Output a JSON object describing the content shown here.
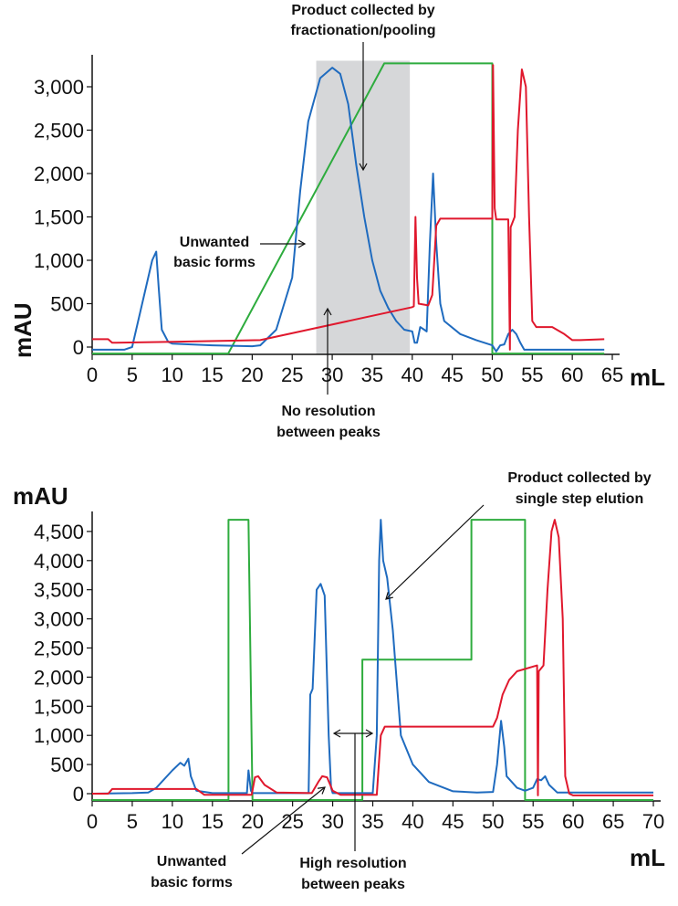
{
  "colors": {
    "blue": "#1f6bbf",
    "red": "#e0182d",
    "green": "#2eac3e",
    "shade": "#d6d7d9"
  },
  "chart_data": [
    {
      "type": "line",
      "ylabel": "mAU",
      "xlabel": "mL",
      "xlim": [
        0,
        65
      ],
      "ylim": [
        -85,
        3300
      ],
      "xticks": [
        0,
        5,
        10,
        15,
        20,
        25,
        30,
        35,
        40,
        45,
        50,
        55,
        60,
        65
      ],
      "yticks": [
        0,
        500,
        1000,
        1500,
        2000,
        2500,
        3000
      ],
      "ytick_labels": [
        "0",
        "500",
        "1,000",
        "1,500",
        "2,000",
        "2,500",
        "3,000"
      ],
      "shaded_region": {
        "x": [
          28,
          39.7
        ]
      },
      "series": [
        {
          "color": "blue",
          "points": [
            [
              0,
              -30
            ],
            [
              4,
              -30
            ],
            [
              5,
              0
            ],
            [
              6,
              400
            ],
            [
              7.5,
              1000
            ],
            [
              8,
              1100
            ],
            [
              8.3,
              700
            ],
            [
              8.7,
              200
            ],
            [
              9.5,
              60
            ],
            [
              10,
              40
            ],
            [
              15,
              20
            ],
            [
              20,
              10
            ],
            [
              21,
              20
            ],
            [
              23,
              200
            ],
            [
              25,
              800
            ],
            [
              26,
              1800
            ],
            [
              27,
              2600
            ],
            [
              28.5,
              3100
            ],
            [
              30,
              3220
            ],
            [
              31,
              3150
            ],
            [
              32,
              2800
            ],
            [
              33,
              2100
            ],
            [
              34,
              1500
            ],
            [
              35,
              1000
            ],
            [
              36,
              650
            ],
            [
              37,
              450
            ],
            [
              38,
              300
            ],
            [
              39,
              200
            ],
            [
              40,
              180
            ],
            [
              40.3,
              50
            ],
            [
              40.6,
              50
            ],
            [
              41,
              230
            ],
            [
              41.5,
              200
            ],
            [
              41.8,
              180
            ],
            [
              42.2,
              1200
            ],
            [
              42.6,
              2000
            ],
            [
              43,
              1200
            ],
            [
              43.5,
              500
            ],
            [
              44,
              300
            ],
            [
              46,
              150
            ],
            [
              48,
              80
            ],
            [
              50,
              20
            ],
            [
              50.5,
              -50
            ],
            [
              51,
              20
            ],
            [
              51.5,
              30
            ],
            [
              52,
              150
            ],
            [
              52.5,
              200
            ],
            [
              53,
              150
            ],
            [
              53.5,
              50
            ],
            [
              54,
              -30
            ],
            [
              64,
              -30
            ]
          ]
        },
        {
          "color": "red",
          "points": [
            [
              0,
              90
            ],
            [
              2,
              90
            ],
            [
              2.5,
              50
            ],
            [
              10,
              60
            ],
            [
              21,
              80
            ],
            [
              22,
              100
            ],
            [
              40,
              460
            ],
            [
              40.2,
              470
            ],
            [
              40.4,
              1500
            ],
            [
              40.6,
              800
            ],
            [
              40.8,
              500
            ],
            [
              42,
              480
            ],
            [
              42.5,
              600
            ],
            [
              43,
              1400
            ],
            [
              43.5,
              1480
            ],
            [
              50,
              1480
            ],
            [
              50.1,
              3250
            ],
            [
              50.3,
              1600
            ],
            [
              50.5,
              1470
            ],
            [
              52,
              1470
            ],
            [
              52.2,
              -30
            ],
            [
              52.3,
              1380
            ],
            [
              52.8,
              1500
            ],
            [
              53.2,
              2500
            ],
            [
              53.7,
              3200
            ],
            [
              54.2,
              3000
            ],
            [
              54.6,
              1500
            ],
            [
              55,
              300
            ],
            [
              55.5,
              230
            ],
            [
              57.5,
              230
            ],
            [
              59,
              150
            ],
            [
              60,
              80
            ],
            [
              61,
              80
            ],
            [
              64,
              90
            ]
          ]
        },
        {
          "color": "green",
          "points": [
            [
              0,
              -75
            ],
            [
              17,
              -75
            ],
            [
              36.5,
              3270
            ],
            [
              50,
              3270
            ],
            [
              50,
              -75
            ],
            [
              64,
              -75
            ]
          ]
        }
      ],
      "annotations": [
        {
          "lines": [
            "Product collected by",
            "fractionation/pooling"
          ]
        },
        {
          "lines": [
            "Unwanted",
            "basic forms"
          ]
        },
        {
          "lines": [
            "No resolution",
            "between peaks"
          ]
        }
      ]
    },
    {
      "type": "line",
      "ylabel": "mAU",
      "xlabel": "mL",
      "xlim": [
        0,
        70
      ],
      "ylim": [
        -125,
        4800
      ],
      "xticks": [
        0,
        5,
        10,
        15,
        20,
        25,
        30,
        35,
        40,
        45,
        50,
        55,
        60,
        65,
        70
      ],
      "yticks": [
        0,
        500,
        1000,
        1500,
        2000,
        2500,
        3000,
        3500,
        4000,
        4500
      ],
      "ytick_labels": [
        "0",
        "500",
        "1,000",
        "1,500",
        "2,000",
        "2,500",
        "3,000",
        "3,500",
        "4,000",
        "4,500"
      ],
      "series": [
        {
          "color": "blue",
          "points": [
            [
              0,
              0
            ],
            [
              5,
              10
            ],
            [
              7,
              20
            ],
            [
              8,
              100
            ],
            [
              10,
              400
            ],
            [
              11,
              530
            ],
            [
              11.5,
              480
            ],
            [
              12,
              600
            ],
            [
              12.3,
              300
            ],
            [
              13,
              50
            ],
            [
              15,
              10
            ],
            [
              19.3,
              10
            ],
            [
              19.5,
              400
            ],
            [
              19.8,
              50
            ],
            [
              20,
              10
            ],
            [
              27,
              10
            ],
            [
              27.2,
              1700
            ],
            [
              27.5,
              1800
            ],
            [
              28,
              3500
            ],
            [
              28.5,
              3600
            ],
            [
              29,
              3400
            ],
            [
              29.5,
              1000
            ],
            [
              29.8,
              100
            ],
            [
              30,
              10
            ],
            [
              35,
              10
            ],
            [
              35.5,
              1000
            ],
            [
              35.8,
              4000
            ],
            [
              36,
              4700
            ],
            [
              36.3,
              4000
            ],
            [
              36.8,
              3700
            ],
            [
              37.5,
              2800
            ],
            [
              38.5,
              1000
            ],
            [
              40,
              500
            ],
            [
              42,
              200
            ],
            [
              45,
              40
            ],
            [
              48,
              20
            ],
            [
              50,
              30
            ],
            [
              50.5,
              500
            ],
            [
              51,
              1250
            ],
            [
              51.4,
              800
            ],
            [
              51.7,
              300
            ],
            [
              53,
              100
            ],
            [
              54,
              50
            ],
            [
              55,
              100
            ],
            [
              55.5,
              250
            ],
            [
              56,
              230
            ],
            [
              56.5,
              300
            ],
            [
              57,
              150
            ],
            [
              58,
              20
            ],
            [
              70,
              20
            ]
          ]
        },
        {
          "color": "red",
          "points": [
            [
              0,
              0
            ],
            [
              2,
              0
            ],
            [
              2.5,
              80
            ],
            [
              13,
              80
            ],
            [
              14,
              -20
            ],
            [
              19.9,
              -20
            ],
            [
              20.3,
              280
            ],
            [
              20.7,
              300
            ],
            [
              21.5,
              150
            ],
            [
              23,
              20
            ],
            [
              27.4,
              10
            ],
            [
              28.2,
              200
            ],
            [
              28.7,
              300
            ],
            [
              29.3,
              280
            ],
            [
              30,
              50
            ],
            [
              31,
              -20
            ],
            [
              35.5,
              -20
            ],
            [
              36,
              1000
            ],
            [
              36.5,
              1150
            ],
            [
              50,
              1150
            ],
            [
              50.5,
              1300
            ],
            [
              51.2,
              1700
            ],
            [
              52,
              1950
            ],
            [
              53,
              2100
            ],
            [
              55.5,
              2200
            ],
            [
              55.6,
              -30
            ],
            [
              55.7,
              2100
            ],
            [
              56.3,
              2200
            ],
            [
              56.8,
              3500
            ],
            [
              57.3,
              4500
            ],
            [
              57.7,
              4700
            ],
            [
              58.2,
              4400
            ],
            [
              58.7,
              3000
            ],
            [
              59,
              300
            ],
            [
              59.5,
              0
            ],
            [
              60,
              -30
            ],
            [
              70,
              -30
            ]
          ]
        },
        {
          "color": "green",
          "points": [
            [
              0,
              -110
            ],
            [
              17,
              -110
            ],
            [
              17,
              4700
            ],
            [
              19.5,
              4700
            ],
            [
              20,
              -110
            ],
            [
              33.7,
              -110
            ],
            [
              33.7,
              2300
            ],
            [
              47.3,
              2300
            ],
            [
              47.3,
              4700
            ],
            [
              54,
              4700
            ],
            [
              54,
              -110
            ],
            [
              70,
              -110
            ]
          ]
        }
      ],
      "annotations": [
        {
          "lines": [
            "Product collected by",
            "single step elution"
          ]
        },
        {
          "lines": [
            "Unwanted",
            "basic forms"
          ]
        },
        {
          "lines": [
            "High resolution",
            "between peaks"
          ]
        }
      ]
    }
  ]
}
